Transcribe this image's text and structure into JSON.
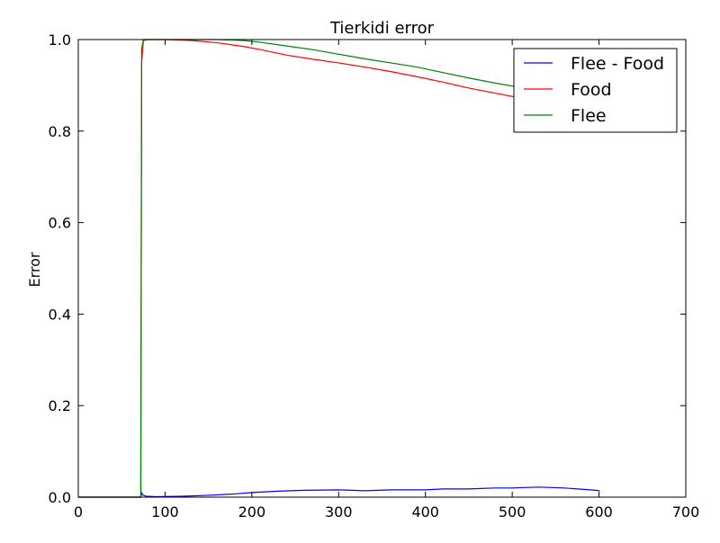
{
  "chart_data": {
    "type": "line",
    "title": "Tierkidi error",
    "xlabel": "",
    "ylabel": "Error",
    "xlim": [
      0,
      700
    ],
    "ylim": [
      0.0,
      1.0
    ],
    "xticks": [
      0,
      100,
      200,
      300,
      400,
      500,
      600,
      700
    ],
    "yticks": [
      0.0,
      0.2,
      0.4,
      0.6,
      0.8,
      1.0
    ],
    "xtick_labels": [
      "0",
      "100",
      "200",
      "300",
      "400",
      "500",
      "600",
      "700"
    ],
    "ytick_labels": [
      "0.0",
      "0.2",
      "0.4",
      "0.6",
      "0.8",
      "1.0"
    ],
    "grid": false,
    "legend_position": "top-right",
    "series": [
      {
        "name": "Flee - Food",
        "color": "#0000ff",
        "x": [
          0,
          72,
          73,
          74,
          78,
          90,
          120,
          150,
          180,
          200,
          230,
          260,
          300,
          330,
          360,
          400,
          420,
          450,
          480,
          500,
          530,
          560,
          590,
          601
        ],
        "y": [
          0.0,
          0.0,
          0.01,
          0.005,
          0.002,
          0.001,
          0.002,
          0.004,
          0.007,
          0.01,
          0.013,
          0.015,
          0.016,
          0.014,
          0.016,
          0.016,
          0.018,
          0.018,
          0.02,
          0.02,
          0.022,
          0.02,
          0.016,
          0.014
        ]
      },
      {
        "name": "Food",
        "color": "#ff0000",
        "x": [
          0,
          72,
          73,
          75,
          80,
          100,
          130,
          160,
          190,
          210,
          240,
          270,
          300,
          330,
          360,
          390,
          420,
          450,
          480,
          510,
          540,
          570,
          601
        ],
        "y": [
          0.0,
          0.0,
          0.95,
          0.998,
          1.0,
          1.0,
          0.998,
          0.993,
          0.985,
          0.978,
          0.966,
          0.957,
          0.949,
          0.94,
          0.93,
          0.919,
          0.907,
          0.894,
          0.883,
          0.872,
          0.865,
          0.858,
          0.85
        ]
      },
      {
        "name": "Flee",
        "color": "#008000",
        "x": [
          0,
          72,
          73,
          75,
          80,
          100,
          130,
          160,
          190,
          210,
          240,
          270,
          300,
          330,
          360,
          390,
          420,
          450,
          480,
          510,
          540,
          570,
          601
        ],
        "y": [
          0.0,
          0.0,
          0.98,
          1.0,
          1.0,
          1.0,
          1.0,
          1.0,
          0.998,
          0.994,
          0.986,
          0.978,
          0.968,
          0.958,
          0.949,
          0.94,
          0.928,
          0.916,
          0.905,
          0.895,
          0.889,
          0.885,
          0.88
        ]
      }
    ]
  }
}
